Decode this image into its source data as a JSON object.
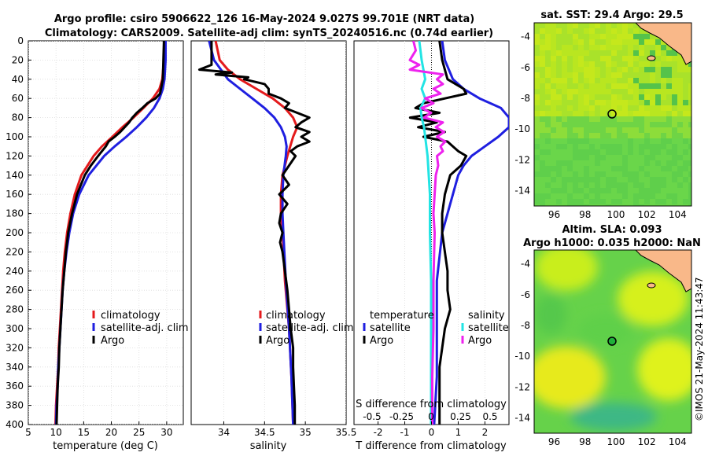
{
  "titles": {
    "line1": "Argo profile: csiro 5906622_126 16-May-2024 9.027S 99.701E (NRT data)",
    "line2": "Climatology: CARS2009. Satellite-adj clim: synTS_20240516.nc (0.74d earlier)",
    "sst": "sat. SST: 29.4 Argo: 29.5",
    "sla1": "Altim. SLA: 0.093",
    "sla2": "Argo h1000: 0.035 h2000: NaN",
    "watermark": "©IMOS 21-May-2024 11:43:47"
  },
  "colors": {
    "climatology": "#e41a1c",
    "satellite": "#1f1fe0",
    "argo": "#000000",
    "s_satellite": "#22e4e4",
    "s_argo": "#ee22ee",
    "land": "#f9b889",
    "sst_bg": "#b5e61d",
    "sla_bg": "#66d24a"
  },
  "chart_data": [
    {
      "type": "line",
      "name": "temperature",
      "xlabel": "temperature (deg C)",
      "ylabel": "",
      "xlim": [
        5,
        33
      ],
      "ylim": [
        0,
        400
      ],
      "xticks": [
        5,
        10,
        15,
        20,
        25,
        30
      ],
      "yticks": [
        0,
        20,
        40,
        60,
        80,
        100,
        120,
        140,
        160,
        180,
        200,
        220,
        240,
        260,
        280,
        300,
        320,
        340,
        360,
        380,
        400
      ],
      "legend": [
        "climatology",
        "satellite-adj. clim",
        "Argo"
      ],
      "legend_position": "lower-right",
      "series": [
        {
          "name": "climatology",
          "depth": [
            0,
            20,
            40,
            50,
            60,
            70,
            80,
            90,
            100,
            110,
            120,
            140,
            160,
            180,
            200,
            220,
            240,
            260,
            280,
            300,
            320,
            340,
            360,
            380,
            400
          ],
          "values": [
            29.6,
            29.5,
            29.2,
            28.7,
            27.5,
            25.8,
            24.0,
            22.0,
            20.2,
            18.3,
            16.8,
            14.6,
            13.4,
            12.6,
            12.0,
            11.6,
            11.3,
            11.1,
            10.9,
            10.7,
            10.5,
            10.4,
            10.2,
            10.0,
            9.9
          ]
        },
        {
          "name": "satellite-adj. clim",
          "depth": [
            0,
            20,
            40,
            50,
            60,
            70,
            80,
            90,
            100,
            110,
            120,
            140,
            160,
            180,
            200,
            220,
            240,
            260,
            280,
            300,
            320,
            340,
            360,
            380,
            400
          ],
          "values": [
            29.8,
            29.8,
            29.6,
            29.3,
            28.7,
            27.7,
            26.3,
            24.6,
            22.7,
            20.6,
            18.7,
            15.9,
            14.2,
            13.1,
            12.4,
            11.9,
            11.5,
            11.2,
            11.0,
            10.8,
            10.6,
            10.4,
            10.3,
            10.1,
            10.0
          ]
        },
        {
          "name": "Argo",
          "depth": [
            0,
            20,
            40,
            55,
            60,
            65,
            70,
            75,
            80,
            85,
            90,
            95,
            100,
            105,
            110,
            120,
            130,
            140,
            160,
            180,
            200,
            220,
            240,
            260,
            280,
            300,
            320,
            340,
            360,
            380,
            400
          ],
          "values": [
            29.5,
            29.4,
            29.3,
            28.8,
            28.0,
            26.5,
            25.6,
            24.6,
            23.8,
            23.2,
            22.4,
            21.6,
            20.6,
            19.5,
            19.0,
            17.6,
            16.3,
            15.2,
            13.8,
            12.9,
            12.2,
            11.8,
            11.5,
            11.2,
            11.0,
            10.8,
            10.6,
            10.5,
            10.3,
            10.2,
            10.1
          ]
        }
      ]
    },
    {
      "type": "line",
      "name": "salinity",
      "xlabel": "salinity",
      "xlim": [
        33.6,
        35.5
      ],
      "ylim": [
        0,
        400
      ],
      "xticks": [
        34,
        34.5,
        35,
        35.5
      ],
      "legend": [
        "climatology",
        "satellite-adj. clim",
        "Argo"
      ],
      "legend_position": "lower-right",
      "series": [
        {
          "name": "climatology",
          "depth": [
            0,
            20,
            30,
            40,
            50,
            60,
            70,
            80,
            90,
            100,
            120,
            140,
            160,
            180,
            200,
            250,
            300,
            350,
            400
          ],
          "values": [
            33.9,
            33.95,
            34.05,
            34.2,
            34.4,
            34.6,
            34.75,
            34.85,
            34.9,
            34.85,
            34.78,
            34.72,
            34.7,
            34.7,
            34.72,
            34.75,
            34.8,
            34.83,
            34.85
          ]
        },
        {
          "name": "satellite-adj. clim",
          "depth": [
            0,
            20,
            40,
            50,
            60,
            70,
            80,
            90,
            100,
            110,
            120,
            140,
            160,
            180,
            200,
            250,
            300,
            350,
            400
          ],
          "values": [
            33.82,
            33.88,
            34.05,
            34.2,
            34.35,
            34.5,
            34.62,
            34.7,
            34.75,
            34.77,
            34.76,
            34.73,
            34.72,
            34.72,
            34.73,
            34.76,
            34.8,
            34.83,
            34.85
          ]
        },
        {
          "name": "Argo",
          "depth": [
            0,
            25,
            30,
            33,
            35,
            38,
            40,
            45,
            50,
            55,
            60,
            65,
            70,
            75,
            80,
            85,
            90,
            95,
            100,
            105,
            110,
            115,
            120,
            130,
            140,
            150,
            160,
            170,
            180,
            190,
            200,
            210,
            220,
            240,
            260,
            280,
            300,
            320,
            340,
            360,
            380,
            400
          ],
          "values": [
            33.85,
            33.85,
            33.7,
            34.1,
            33.9,
            34.3,
            34.25,
            34.5,
            34.55,
            34.55,
            34.7,
            34.8,
            34.75,
            34.9,
            35.05,
            34.95,
            34.88,
            35.05,
            34.95,
            35.05,
            34.9,
            34.82,
            34.88,
            34.8,
            34.72,
            34.8,
            34.68,
            34.78,
            34.7,
            34.68,
            34.72,
            34.69,
            34.72,
            34.75,
            34.78,
            34.8,
            34.82,
            34.85,
            34.85,
            34.86,
            34.87,
            34.87
          ]
        }
      ]
    },
    {
      "type": "line",
      "name": "differences",
      "xlabel": "T difference from climatology",
      "xlabel_top": "S difference from climatology",
      "xlim": [
        -2.9,
        2.9
      ],
      "ylim": [
        0,
        400
      ],
      "xticks": [
        -2,
        -1,
        0,
        1,
        2
      ],
      "s_xticks": [
        -0.5,
        -0.25,
        0,
        0.25,
        0.5
      ],
      "s_tick_labels": [
        "-0.5",
        "-0.25",
        "0",
        "0.25",
        "0.5"
      ],
      "legend_left": [
        "temperature",
        "satellite",
        "Argo"
      ],
      "legend_right": [
        "salinity",
        "satellite",
        "Argo"
      ],
      "legend_position": "lower",
      "series": [
        {
          "name": "T satellite",
          "depth": [
            0,
            20,
            40,
            50,
            60,
            70,
            80,
            90,
            95,
            100,
            110,
            120,
            130,
            140,
            150,
            160,
            170,
            180,
            190,
            200,
            250,
            300,
            350,
            400
          ],
          "values": [
            0.4,
            0.5,
            0.8,
            1.2,
            1.8,
            2.6,
            2.9,
            2.9,
            2.7,
            2.5,
            2.0,
            1.5,
            1.2,
            1.0,
            0.9,
            0.8,
            0.7,
            0.6,
            0.5,
            0.4,
            0.2,
            0.2,
            0.2,
            0.1
          ]
        },
        {
          "name": "T Argo",
          "depth": [
            0,
            20,
            40,
            50,
            55,
            60,
            65,
            70,
            75,
            80,
            85,
            90,
            95,
            100,
            105,
            110,
            115,
            120,
            130,
            140,
            160,
            180,
            200,
            220,
            240,
            260,
            280,
            300,
            320,
            340,
            360,
            380,
            400
          ],
          "values": [
            0.3,
            0.4,
            0.6,
            1.2,
            1.3,
            0.5,
            -0.3,
            -0.6,
            0.3,
            -0.8,
            0.2,
            -0.5,
            0.5,
            -0.3,
            0.6,
            0.8,
            1.0,
            1.3,
            1.1,
            0.7,
            0.5,
            0.4,
            0.4,
            0.5,
            0.6,
            0.6,
            0.7,
            0.5,
            0.4,
            0.3,
            0.3,
            0.3,
            0.3
          ]
        },
        {
          "name": "S satellite",
          "depth": [
            0,
            20,
            40,
            50,
            60,
            70,
            80,
            90,
            100,
            110,
            120,
            140,
            160,
            180,
            200,
            250,
            300,
            350,
            400
          ],
          "values": [
            -0.1,
            -0.08,
            -0.05,
            -0.08,
            -0.05,
            -0.09,
            -0.08,
            -0.06,
            -0.05,
            -0.04,
            -0.03,
            -0.02,
            -0.01,
            -0.01,
            -0.01,
            0,
            0,
            0,
            0
          ]
        },
        {
          "name": "S Argo",
          "depth": [
            0,
            10,
            20,
            25,
            30,
            35,
            40,
            45,
            50,
            55,
            60,
            65,
            70,
            75,
            80,
            85,
            90,
            95,
            100,
            105,
            110,
            115,
            120,
            130,
            140,
            160,
            180,
            200,
            250,
            300,
            350,
            400
          ],
          "values": [
            -0.15,
            -0.13,
            -0.18,
            -0.1,
            -0.18,
            0.1,
            0.05,
            0.1,
            0.02,
            0.08,
            -0.05,
            0.02,
            -0.08,
            0,
            -0.06,
            0.1,
            0.04,
            0.11,
            0.05,
            0.12,
            0.08,
            0.1,
            0.05,
            0.06,
            0.04,
            0.03,
            0.02,
            0.03,
            0.02,
            0.02,
            0.01,
            0.01
          ]
        }
      ]
    },
    {
      "type": "heatmap",
      "name": "sst-map",
      "title": "sat. SST: 29.4 Argo: 29.5",
      "xlim": [
        94.7,
        104.9
      ],
      "ylim": [
        -15.0,
        -3.1
      ],
      "xticks": [
        96,
        98,
        100,
        102,
        104
      ],
      "yticks": [
        -4,
        -6,
        -8,
        -10,
        -12,
        -14
      ],
      "argo_position": {
        "lon": 99.701,
        "lat": -9.027
      }
    },
    {
      "type": "heatmap",
      "name": "sla-map",
      "title": "Altim. SLA: 0.093 / Argo h1000: 0.035 h2000: NaN",
      "xlim": [
        94.7,
        104.9
      ],
      "ylim": [
        -15.0,
        -3.1
      ],
      "xticks": [
        96,
        98,
        100,
        102,
        104
      ],
      "yticks": [
        -4,
        -6,
        -8,
        -10,
        -12,
        -14
      ],
      "argo_position": {
        "lon": 99.701,
        "lat": -9.027
      }
    }
  ]
}
